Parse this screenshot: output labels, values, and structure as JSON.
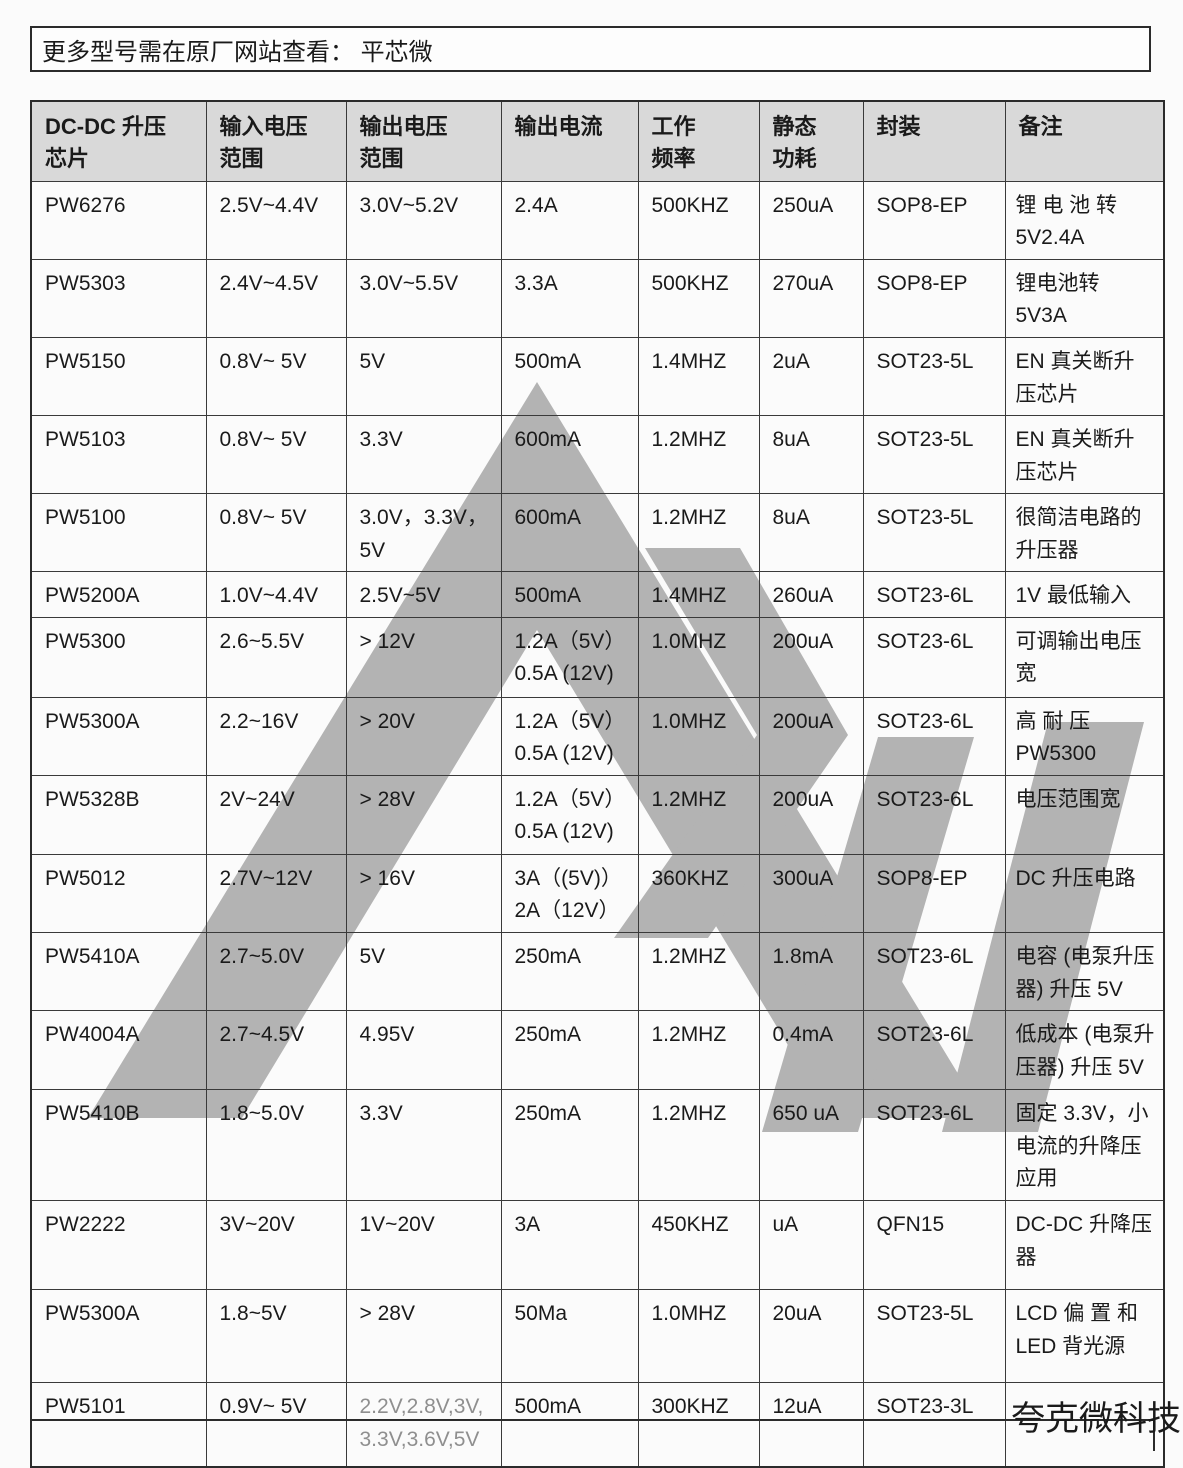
{
  "banner": {
    "text": "更多型号需在原厂网站查看： 平芯微"
  },
  "watermark": {
    "brand_text": "夸克微科技",
    "brand_color": "#e9df5c",
    "logo_color": "#b3b3b3"
  },
  "table": {
    "muted_color": "#8f8f8f",
    "headers": [
      "DC-DC 升压\n芯片",
      "输入电压\n范围",
      "输出电压\n范围",
      "输出电流",
      "工作\n频率",
      "静态\n功耗",
      "封装",
      "备注"
    ],
    "rows": [
      [
        "PW6276",
        "2.5V~4.4V",
        "3.0V~5.2V",
        "2.4A",
        "500KHZ",
        "250uA",
        "SOP8-EP",
        "锂 电 池 转 5V2.4A"
      ],
      [
        "PW5303",
        "2.4V~4.5V",
        "3.0V~5.5V",
        "3.3A",
        "500KHZ",
        "270uA",
        "SOP8-EP",
        "锂电池转 5V3A"
      ],
      [
        "PW5150",
        "0.8V~ 5V",
        "5V",
        "500mA",
        "1.4MHZ",
        "2uA",
        "SOT23-5L",
        "EN 真关断升压芯片"
      ],
      [
        "PW5103",
        "0.8V~ 5V",
        "3.3V",
        "600mA",
        "1.2MHZ",
        "8uA",
        "SOT23-5L",
        "EN 真关断升压芯片"
      ],
      [
        "PW5100",
        "0.8V~ 5V",
        "3.0V，3.3V，5V",
        "600mA",
        "1.2MHZ",
        "8uA",
        "SOT23-5L",
        "很简洁电路的升压器"
      ],
      [
        "PW5200A",
        "1.0V~4.4V",
        "2.5V~5V",
        "500mA",
        "1.4MHZ",
        "260uA",
        "SOT23-6L",
        "1V 最低输入"
      ],
      [
        "PW5300",
        "2.6~5.5V",
        "> 12V",
        "1.2A（5V）\n0.5A (12V)",
        "1.0MHZ",
        "200uA",
        "SOT23-6L",
        "可调输出电压宽"
      ],
      [
        "PW5300A",
        "2.2~16V",
        "> 20V",
        "1.2A（5V）\n0.5A (12V)",
        "1.0MHZ",
        "200uA",
        "SOT23-6L",
        "高  耐  压 PW5300"
      ],
      [
        "PW5328B",
        "2V~24V",
        "> 28V",
        "1.2A（5V）\n0.5A (12V)",
        "1.2MHZ",
        "200uA",
        "SOT23-6L",
        "电压范围宽"
      ],
      [
        "PW5012",
        "2.7V~12V",
        "> 16V",
        "3A（(5V)）\n2A（12V）",
        "360KHZ",
        "300uA",
        "SOP8-EP",
        "DC 升压电路"
      ],
      [
        "PW5410A",
        "2.7~5.0V",
        "5V",
        "250mA",
        "1.2MHZ",
        "1.8mA",
        "SOT23-6L",
        "电容 (电泵升压器) 升压 5V"
      ],
      [
        "PW4004A",
        "2.7~4.5V",
        "4.95V",
        "250mA",
        "1.2MHZ",
        "0.4mA",
        "SOT23-6L",
        "低成本 (电泵升压器) 升压 5V"
      ],
      [
        "PW5410B",
        "1.8~5.0V",
        "3.3V",
        "250mA",
        "1.2MHZ",
        "650 uA",
        "SOT23-6L",
        "固定 3.3V，小电流的升降压应用"
      ],
      [
        "PW2222",
        "3V~20V",
        "1V~20V",
        "3A",
        "450KHZ",
        "uA",
        "QFN15",
        "DC-DC 升降压器"
      ],
      [
        "PW5300A",
        "1.8~5V",
        "> 28V",
        "50Ma",
        "1.0MHZ",
        "20uA",
        "SOT23-5L",
        "LCD 偏 置 和 LED 背光源"
      ],
      [
        "PW5101",
        "0.9V~ 5V",
        {
          "text": "2.2V,2.8V,3V,\n3.3V,3.6V,5V",
          "muted": true
        },
        "500mA",
        "300KHZ",
        "12uA",
        "SOT23-3L",
        ""
      ]
    ]
  }
}
